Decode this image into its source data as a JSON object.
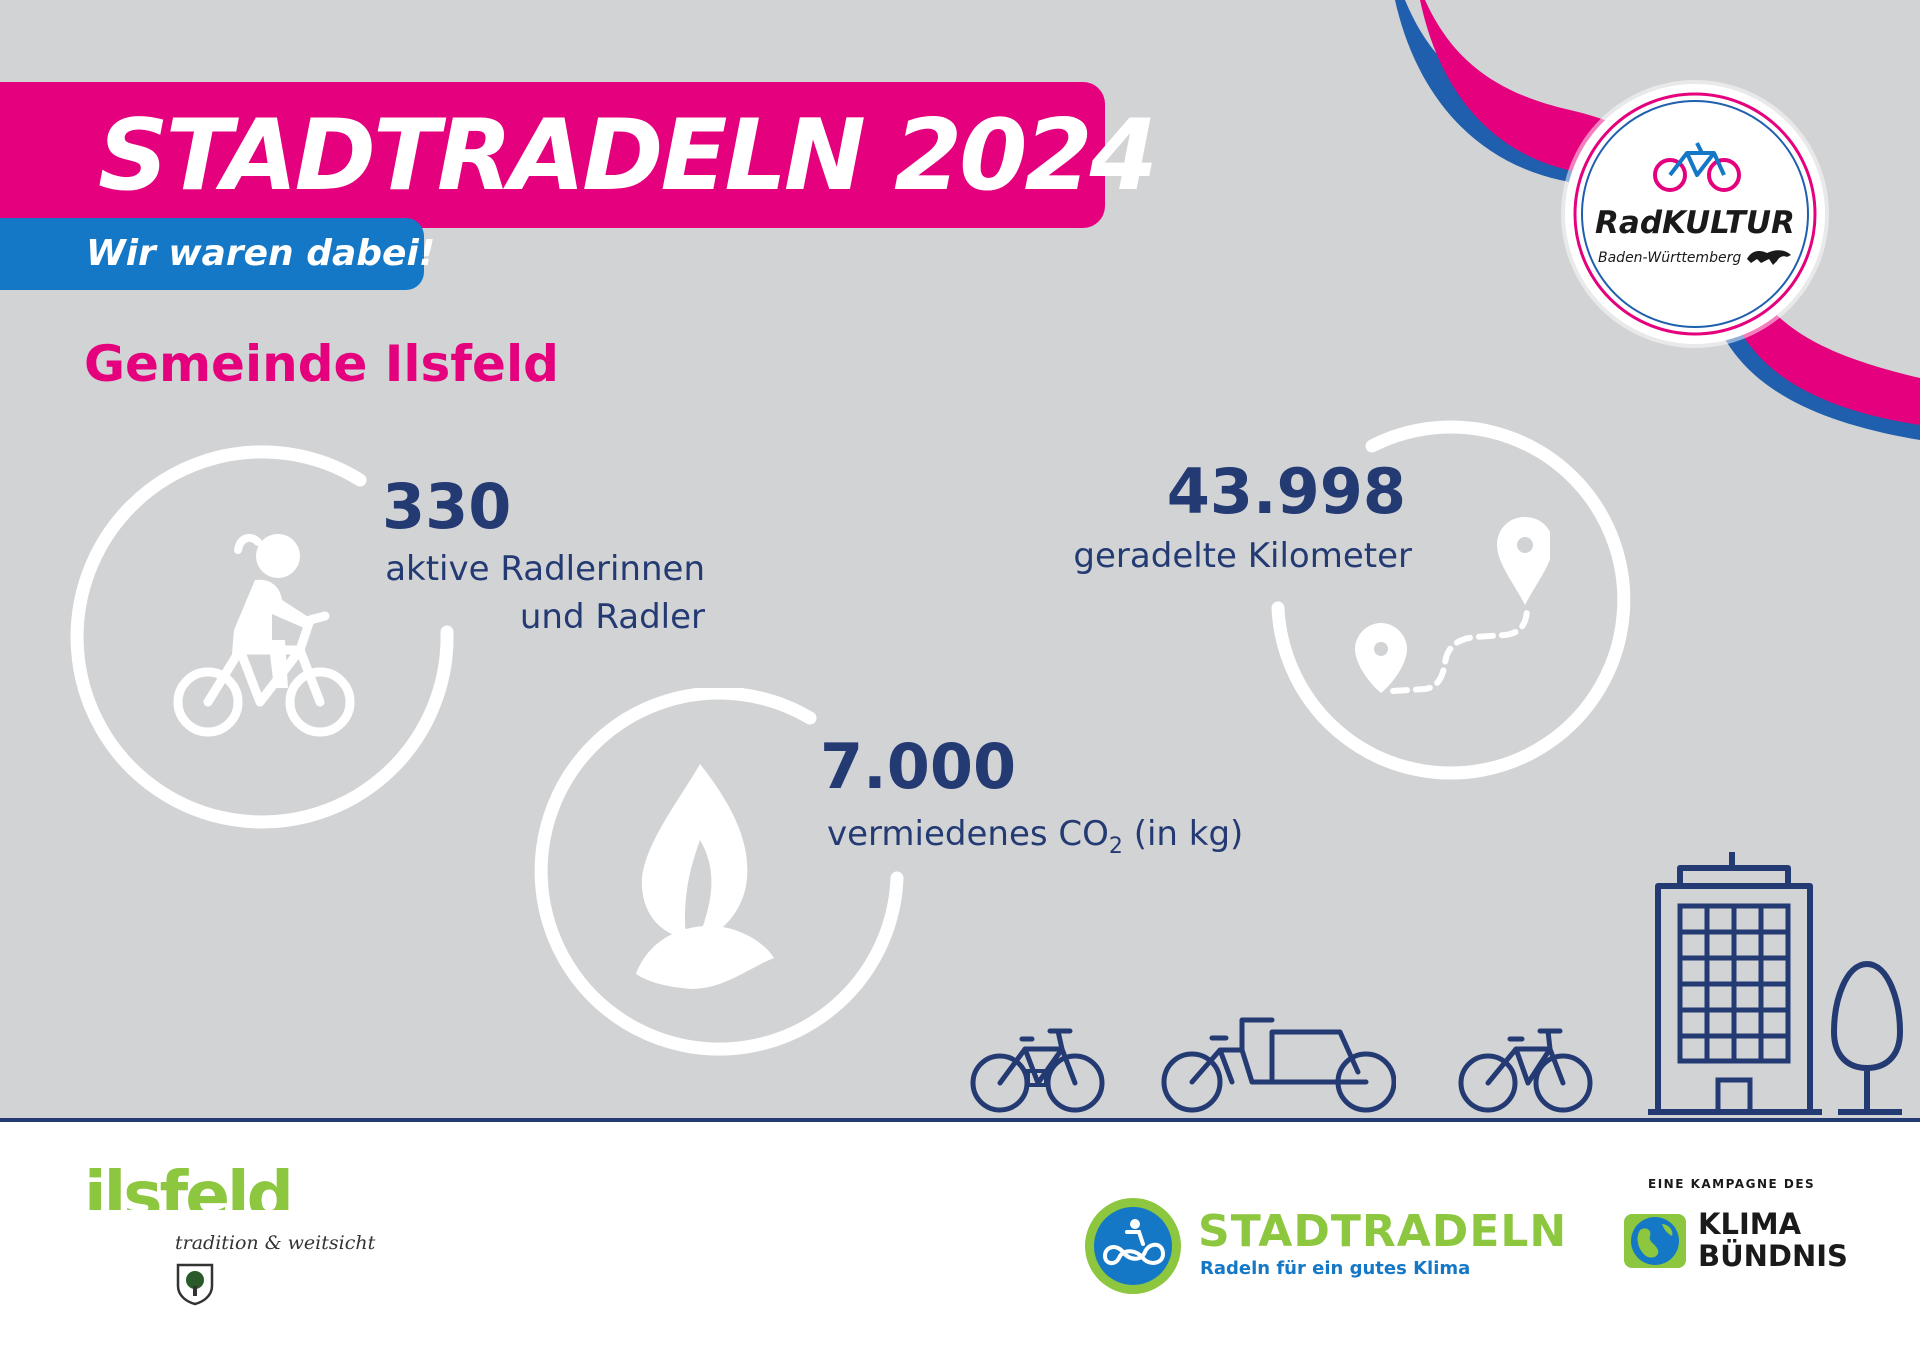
{
  "header": {
    "title": "STADTRADELN 2024",
    "subtitle": "Wir waren dabei!",
    "municipality": "Gemeinde Ilsfeld"
  },
  "stats": [
    {
      "value": "330",
      "label_line1": "aktive Radlerinnen",
      "label_line2": "und Radler"
    },
    {
      "value": "7.000",
      "label_main": "vermiedenes CO",
      "label_sub": "2",
      "label_unit": " (in kg)"
    },
    {
      "value": "43.998",
      "label": "geradelte Kilometer"
    }
  ],
  "radkultur_logo": {
    "name": "RadKULTUR",
    "region": "Baden-Württemberg"
  },
  "footer": {
    "ilsfeld_logo": "ilsfeld",
    "ilsfeld_tagline": "tradition & weitsicht",
    "stadtradeln_name": "STADTRADELN",
    "stadtradeln_slogan": "Radeln für ein gutes Klima",
    "kampagne_label": "EINE KAMPAGNE DES",
    "klima_line1": "KLIMA",
    "klima_line2": "BÜNDNIS"
  },
  "colors": {
    "pink": "#e5007d",
    "blue": "#1478c6",
    "navy": "#243a73",
    "green": "#8dc63f",
    "background": "#d2d3d5"
  },
  "icons": [
    "cyclist-icon",
    "leaf-icon",
    "route-icon",
    "bicycle-icon",
    "cargo-bike-icon",
    "building-icon",
    "tree-icon",
    "coat-of-arms-icon",
    "globe-icon"
  ]
}
